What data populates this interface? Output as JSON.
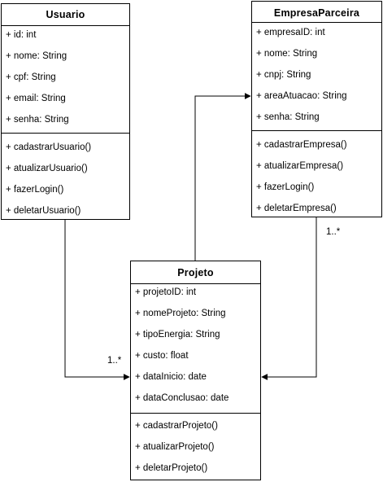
{
  "classes": {
    "usuario": {
      "name": "Usuario",
      "attributes": [
        "+ id: int",
        "+ nome: String",
        "+ cpf: String",
        "+ email: String",
        "+ senha: String"
      ],
      "methods": [
        "+ cadastrarUsuario()",
        "+ atualizarUsuario()",
        "+ fazerLogin()",
        "+ deletarUsuario()"
      ]
    },
    "empresa": {
      "name": "EmpresaParceira",
      "attributes": [
        "+ empresaID: int",
        "+ nome: String",
        "+ cnpj: String",
        "+ areaAtuacao: String",
        "+ senha: String"
      ],
      "methods": [
        "+ cadastrarEmpresa()",
        "+ atualizarEmpresa()",
        "+ fazerLogin()",
        "+ deletarEmpresa()"
      ]
    },
    "projeto": {
      "name": "Projeto",
      "attributes": [
        "+ projetoID: int",
        "+ nomeProjeto: String",
        "+ tipoEnergia: String",
        "+ custo: float",
        "+ dataInicio: date",
        "+ dataConclusao: date"
      ],
      "methods": [
        "+ cadastrarProjeto()",
        "+ atualizarProjeto()",
        "+ deletarProjeto()"
      ]
    }
  },
  "associations": {
    "usuario_projeto": {
      "multiplicity": "1..*"
    },
    "empresa_projeto": {
      "multiplicity": "1..*"
    }
  }
}
